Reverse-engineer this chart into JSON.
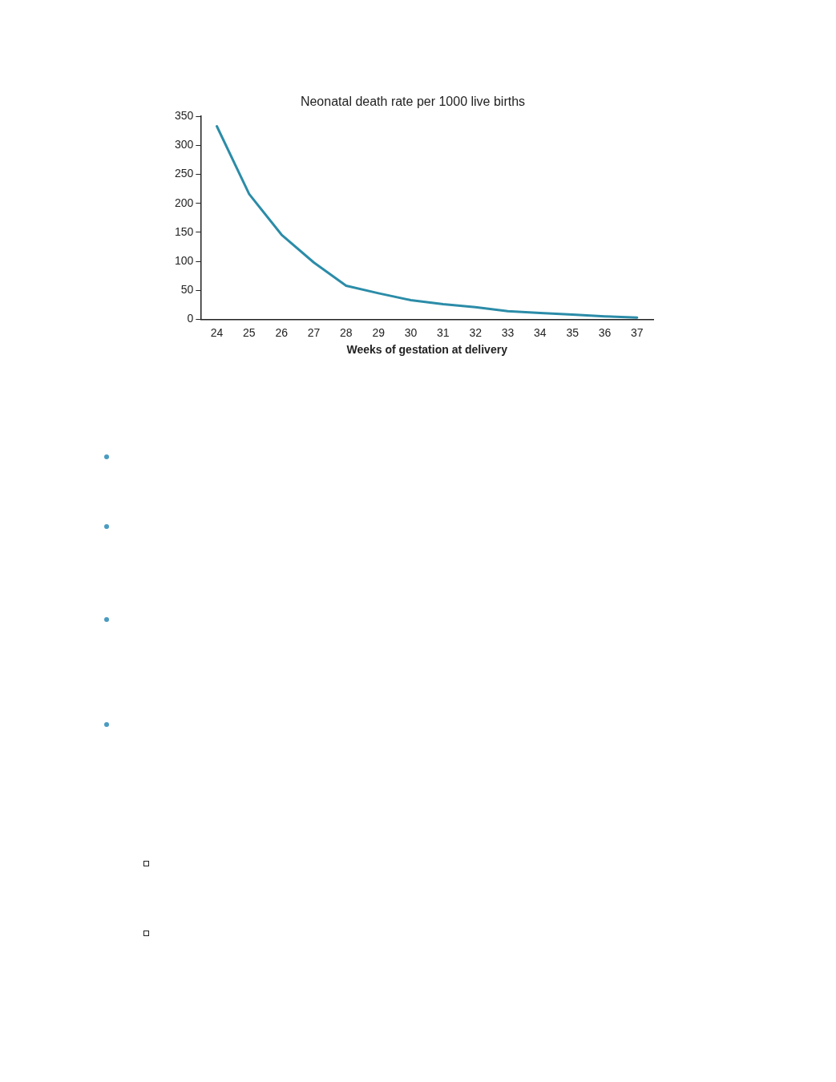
{
  "chart_data": {
    "type": "line",
    "title": "Neonatal death rate per 1000 live births",
    "xlabel": "Weeks of gestation at delivery",
    "categories": [
      "24",
      "25",
      "26",
      "27",
      "28",
      "29",
      "30",
      "31",
      "32",
      "33",
      "34",
      "35",
      "36",
      "37"
    ],
    "series": [
      {
        "color": "#2b8ca8",
        "values": [
          333,
          216,
          146,
          98,
          58,
          45,
          33,
          26,
          21,
          14,
          11,
          8,
          5,
          3
        ]
      }
    ],
    "ylim": [
      0,
      350
    ],
    "yticks": [
      0,
      50,
      100,
      150,
      200,
      250,
      300,
      350
    ],
    "grid": false,
    "legend": false,
    "marker": "none",
    "line_style": "solid"
  }
}
